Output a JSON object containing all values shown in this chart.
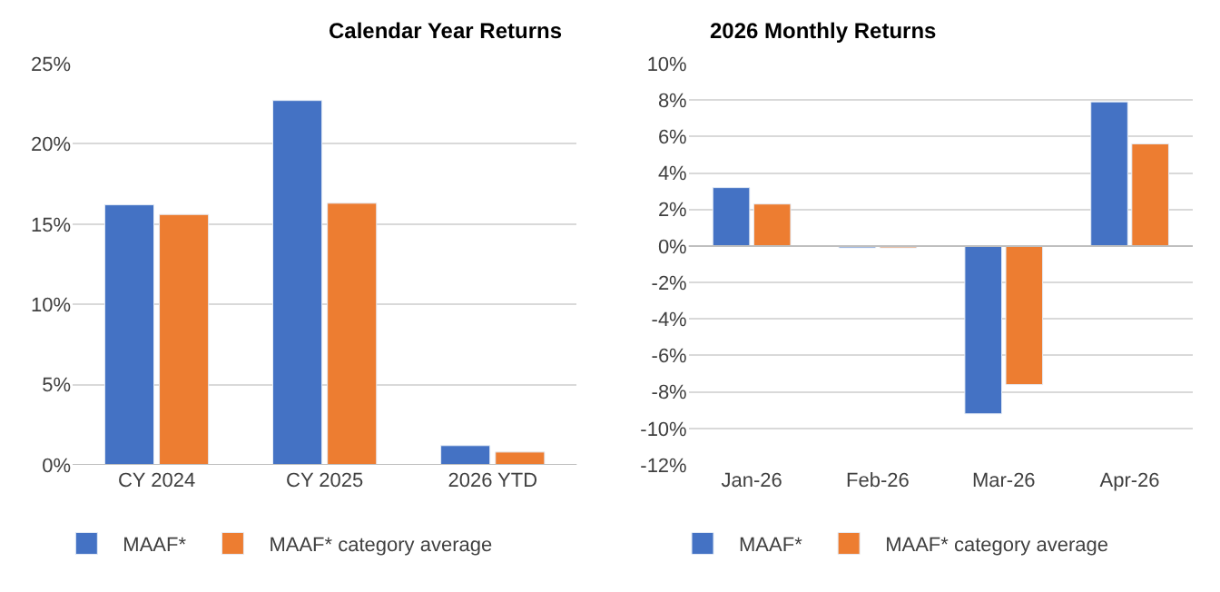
{
  "chart_data": [
    {
      "type": "bar",
      "title": "Calendar Year Returns",
      "categories": [
        "CY 2024",
        "CY 2025",
        "2026 YTD"
      ],
      "series": [
        {
          "name": "MAAF*",
          "color": "#4472c4",
          "values": [
            16.2,
            22.7,
            1.2
          ]
        },
        {
          "name": "MAAF* category average",
          "color": "#ed7d31",
          "values": [
            15.6,
            16.3,
            0.8
          ]
        }
      ],
      "ylim": [
        0,
        25
      ],
      "yticks": [
        {
          "value": 0,
          "label": "0%"
        },
        {
          "value": 5,
          "label": "5%"
        },
        {
          "value": 10,
          "label": "10%"
        },
        {
          "value": 15,
          "label": "15%"
        },
        {
          "value": 20,
          "label": "20%"
        },
        {
          "value": 25,
          "label": "25%"
        }
      ],
      "grid": "y",
      "legend": "bottom"
    },
    {
      "type": "bar",
      "title": "2026 Monthly Returns",
      "categories": [
        "Jan-26",
        "Feb-26",
        "Mar-26",
        "Apr-26"
      ],
      "series": [
        {
          "name": "MAAF*",
          "color": "#4472c4",
          "values": [
            3.2,
            -0.1,
            -9.2,
            7.9
          ]
        },
        {
          "name": "MAAF* category average",
          "color": "#ed7d31",
          "values": [
            2.3,
            -0.1,
            -7.6,
            5.6
          ]
        }
      ],
      "ylim": [
        -12,
        10
      ],
      "yticks": [
        {
          "value": -12,
          "label": "-12%"
        },
        {
          "value": -10,
          "label": "-10%"
        },
        {
          "value": -8,
          "label": "-8%"
        },
        {
          "value": -6,
          "label": "-6%"
        },
        {
          "value": -4,
          "label": "-4%"
        },
        {
          "value": -2,
          "label": "-2%"
        },
        {
          "value": 0,
          "label": "0%"
        },
        {
          "value": 2,
          "label": "2%"
        },
        {
          "value": 4,
          "label": "4%"
        },
        {
          "value": 6,
          "label": "6%"
        },
        {
          "value": 8,
          "label": "8%"
        },
        {
          "value": 10,
          "label": "10%"
        }
      ],
      "grid": "y",
      "legend": "bottom"
    }
  ]
}
